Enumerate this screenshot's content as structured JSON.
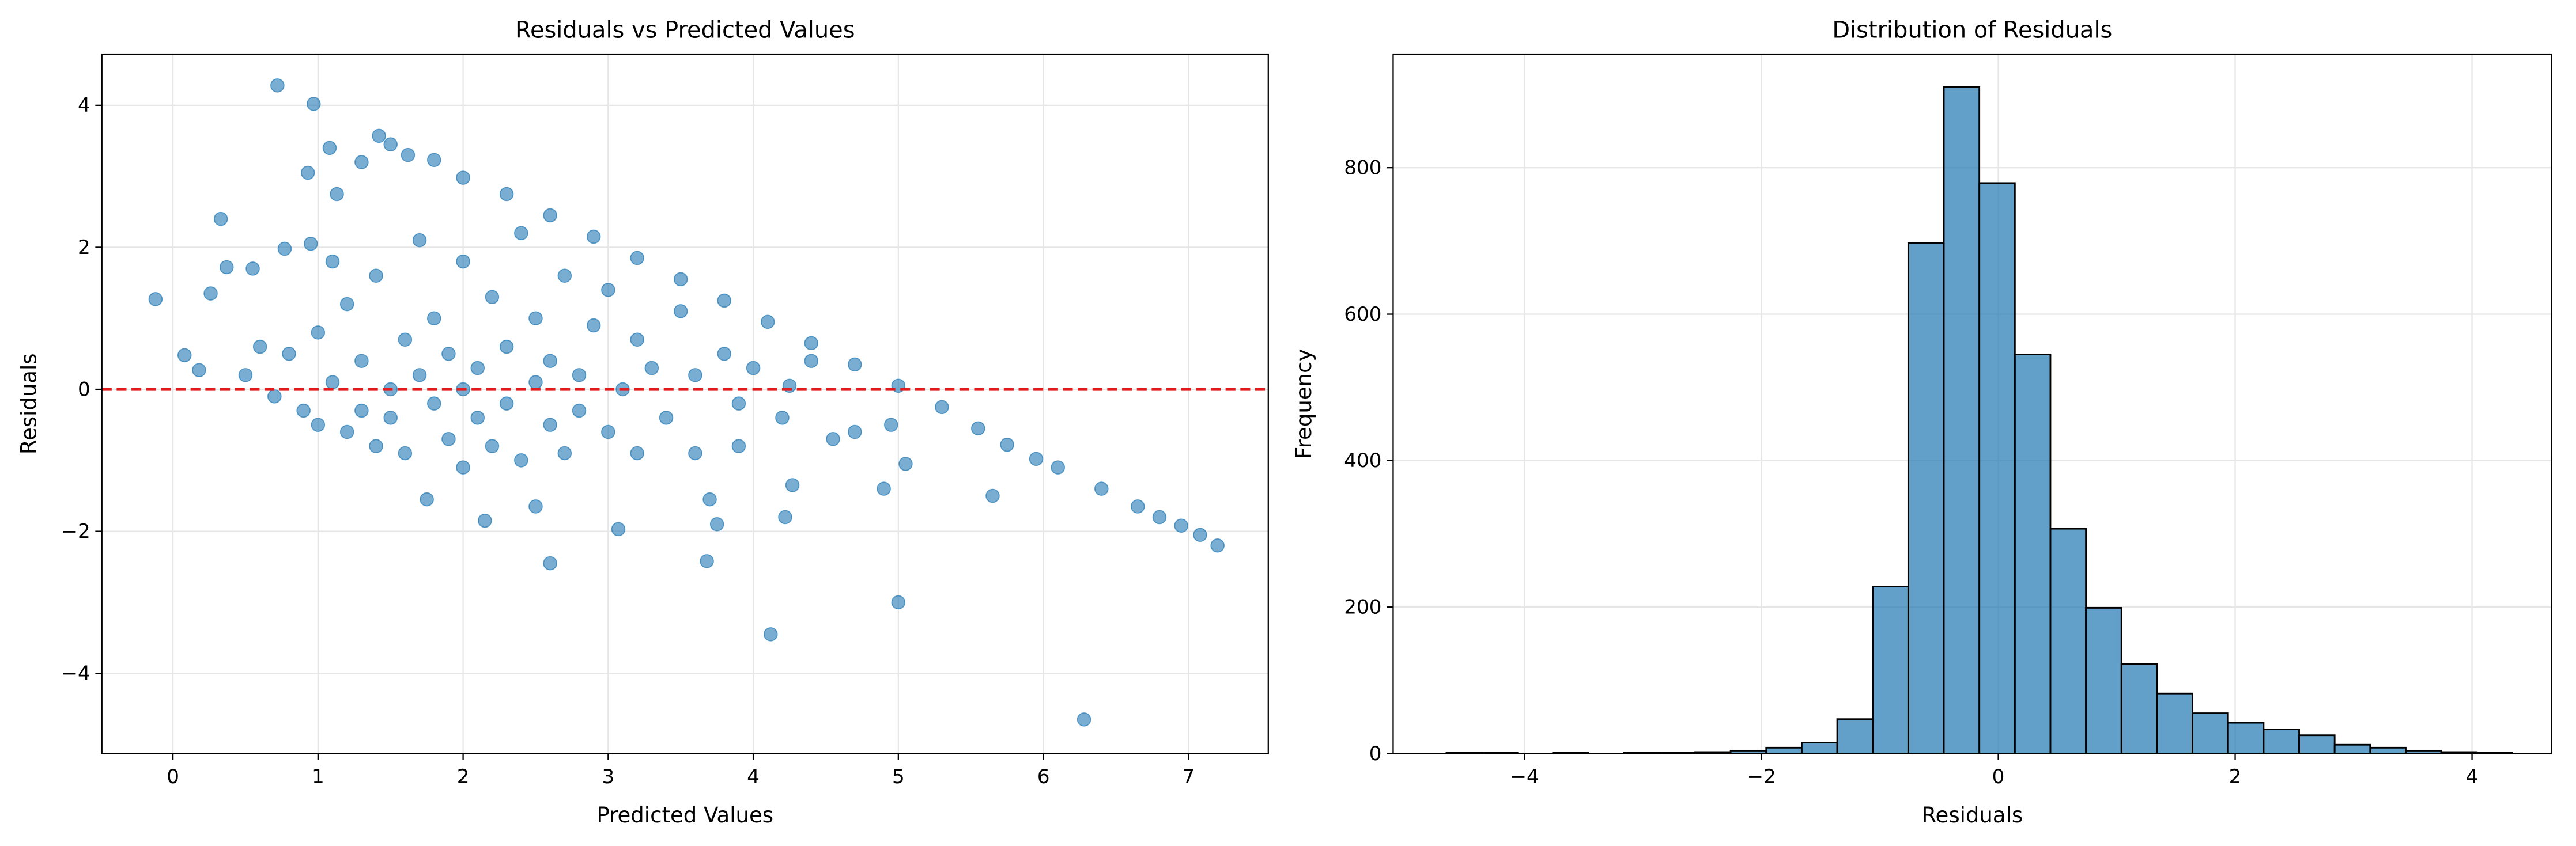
{
  "chart_data": [
    {
      "type": "scatter",
      "title": "Residuals vs Predicted Values",
      "xlabel": "Predicted Values",
      "ylabel": "Residuals",
      "color": "#1f77b4",
      "grid": true,
      "hline": 0,
      "hline_color": "#e41a1c",
      "xlim": [
        -0.49,
        7.55
      ],
      "ylim": [
        -5.13,
        4.72
      ],
      "xticks": [
        0,
        1,
        2,
        3,
        4,
        5,
        6,
        7
      ],
      "yticks": [
        {
          "value": -4,
          "label": "−4"
        },
        {
          "value": -2,
          "label": "−2"
        },
        0,
        2,
        4
      ],
      "x": [
        -0.12,
        0.08,
        0.18,
        0.26,
        0.33,
        0.37,
        0.55,
        0.72,
        0.77,
        0.93,
        0.97,
        1.08,
        1.13,
        1.3,
        1.42,
        1.5,
        1.62,
        1.8,
        2.0,
        2.3,
        2.6,
        2.9,
        3.2,
        3.5,
        3.8,
        4.1,
        4.4,
        4.7,
        5.0,
        5.3,
        5.55,
        5.75,
        5.95,
        6.1,
        6.4,
        6.65,
        6.8,
        6.95,
        7.08,
        7.2,
        6.28,
        4.12,
        5.0,
        2.6,
        3.68,
        3.07,
        4.22,
        4.9,
        5.65,
        4.27,
        3.75,
        3.7,
        2.15,
        2.5,
        1.75,
        4.95,
        4.55,
        4.7,
        5.05,
        4.25,
        3.9,
        3.6,
        0.5,
        0.7,
        0.8,
        0.9,
        1.0,
        1.0,
        1.1,
        1.2,
        1.2,
        1.3,
        1.4,
        1.4,
        1.5,
        1.5,
        1.6,
        1.6,
        1.7,
        1.7,
        1.8,
        1.8,
        1.9,
        1.9,
        2.0,
        2.0,
        2.0,
        2.1,
        2.1,
        2.2,
        2.2,
        2.3,
        2.3,
        2.4,
        2.4,
        2.5,
        2.5,
        2.6,
        2.6,
        2.7,
        2.7,
        2.8,
        2.8,
        2.9,
        3.0,
        3.0,
        3.1,
        3.2,
        3.2,
        3.3,
        3.4,
        3.5,
        3.6,
        3.8,
        3.9,
        4.0,
        4.2,
        4.4,
        1.3,
        0.6,
        1.1,
        0.95
      ],
      "values": [
        1.27,
        0.48,
        0.27,
        1.35,
        2.4,
        1.72,
        1.7,
        4.28,
        1.98,
        3.05,
        4.02,
        3.4,
        2.75,
        3.2,
        3.57,
        3.45,
        3.3,
        3.23,
        2.98,
        2.75,
        2.45,
        2.15,
        1.85,
        1.55,
        1.25,
        0.95,
        0.65,
        0.35,
        0.05,
        -0.25,
        -0.55,
        -0.78,
        -0.98,
        -1.1,
        -1.4,
        -1.65,
        -1.8,
        -1.92,
        -2.05,
        -2.2,
        -4.65,
        -3.45,
        -3.0,
        -2.45,
        -2.42,
        -1.97,
        -1.8,
        -1.4,
        -1.5,
        -1.35,
        -1.9,
        -1.55,
        -1.85,
        -1.65,
        -1.55,
        -0.5,
        -0.7,
        -0.6,
        -1.05,
        0.05,
        -0.8,
        -0.9,
        0.2,
        -0.1,
        0.5,
        -0.3,
        0.8,
        -0.5,
        0.1,
        1.2,
        -0.6,
        0.4,
        -0.8,
        1.6,
        0.0,
        -0.4,
        0.7,
        -0.9,
        2.1,
        0.2,
        -0.2,
        1.0,
        -0.7,
        0.5,
        -1.1,
        0.0,
        1.8,
        0.3,
        -0.4,
        1.3,
        -0.8,
        0.6,
        -0.2,
        2.2,
        -1.0,
        0.1,
        1.0,
        -0.5,
        0.4,
        1.6,
        -0.9,
        0.2,
        -0.3,
        0.9,
        -0.6,
        1.4,
        0.0,
        -0.9,
        0.7,
        0.3,
        -0.4,
        1.1,
        0.2,
        0.5,
        -0.2,
        0.3,
        -0.4,
        0.4,
        -0.3,
        0.6,
        1.8,
        2.05
      ]
    },
    {
      "type": "histogram",
      "title": "Distribution of Residuals",
      "xlabel": "Residuals",
      "ylabel": "Frequency",
      "color": "#1f77b4",
      "edgecolor": "#000000",
      "grid": true,
      "xlim": [
        -5.11,
        4.67
      ],
      "ylim": [
        0,
        955
      ],
      "xticks": [
        {
          "value": -4,
          "label": "−4"
        },
        {
          "value": -2,
          "label": "−2"
        },
        0,
        2,
        4
      ],
      "yticks": [
        0,
        200,
        400,
        600,
        800
      ],
      "bins": [
        -4.66,
        -4.36,
        -4.06,
        -3.76,
        -3.46,
        -3.16,
        -2.86,
        -2.56,
        -2.26,
        -1.96,
        -1.66,
        -1.36,
        -1.06,
        -0.76,
        -0.46,
        -0.16,
        0.14,
        0.44,
        0.74,
        1.04,
        1.34,
        1.64,
        1.94,
        2.24,
        2.54,
        2.84,
        3.14,
        3.44,
        3.74,
        4.04,
        4.34
      ],
      "values": [
        1,
        1,
        0,
        1,
        0,
        1,
        1,
        2,
        4,
        8,
        15,
        47,
        228,
        697,
        910,
        779,
        545,
        307,
        199,
        122,
        82,
        55,
        42,
        33,
        25,
        12,
        8,
        4,
        2,
        1
      ]
    }
  ]
}
